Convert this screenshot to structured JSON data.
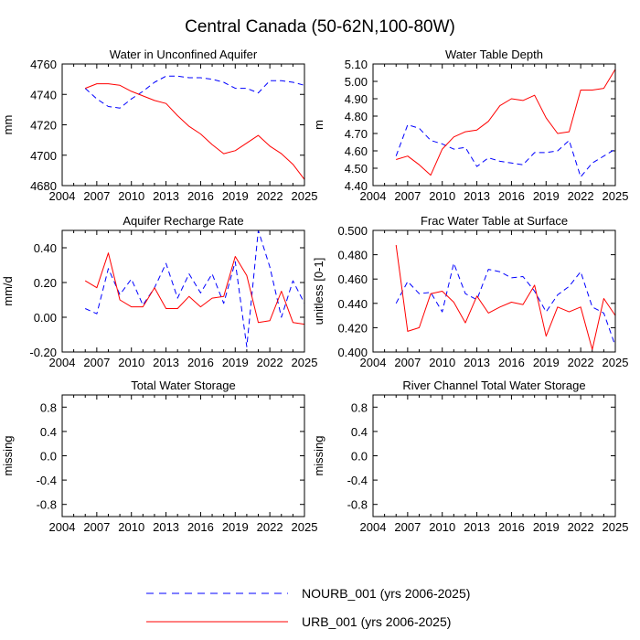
{
  "figure": {
    "title": "Central Canada (50-62N,100-80W)"
  },
  "legend": [
    {
      "label": "NOURB_001 (yrs 2006-2025)",
      "color": "#0000ff",
      "style": "dashed"
    },
    {
      "label": "URB_001 (yrs 2006-2025)",
      "color": "#ff0000",
      "style": "solid"
    }
  ],
  "chart_data": [
    {
      "type": "line",
      "title": "Water in Unconfined Aquifer",
      "ylabel": "mm",
      "xlim": [
        2004,
        2025
      ],
      "ylim": [
        4680,
        4760
      ],
      "xticks": [
        2004,
        2007,
        2010,
        2013,
        2016,
        2019,
        2022,
        2025
      ],
      "yticks": [
        4680,
        4700,
        4720,
        4740,
        4760
      ],
      "ytick_labels": [
        "4680",
        "4700",
        "4720",
        "4740",
        "4760"
      ],
      "x": [
        2006,
        2007,
        2008,
        2009,
        2010,
        2011,
        2012,
        2013,
        2014,
        2015,
        2016,
        2017,
        2018,
        2019,
        2020,
        2021,
        2022,
        2023,
        2024,
        2025
      ],
      "series": [
        {
          "name": "NOURB_001",
          "color": "#0000ff",
          "style": "dashed",
          "values": [
            4744,
            4737,
            4732,
            4731,
            4737,
            4742,
            4748,
            4752,
            4752,
            4751,
            4751,
            4750,
            4748,
            4744,
            4744,
            4741,
            4749,
            4749,
            4748,
            4746
          ]
        },
        {
          "name": "URB_001",
          "color": "#ff0000",
          "style": "solid",
          "values": [
            4744,
            4747,
            4747,
            4746,
            4742,
            4739,
            4736,
            4734,
            4726,
            4719,
            4714,
            4707,
            4701,
            4703,
            4708,
            4713,
            4706,
            4701,
            4694,
            4684
          ]
        }
      ]
    },
    {
      "type": "line",
      "title": "Water Table Depth",
      "ylabel": "m",
      "xlim": [
        2004,
        2025
      ],
      "ylim": [
        4.4,
        5.1
      ],
      "xticks": [
        2004,
        2007,
        2010,
        2013,
        2016,
        2019,
        2022,
        2025
      ],
      "yticks": [
        4.4,
        4.5,
        4.6,
        4.7,
        4.8,
        4.9,
        5.0,
        5.1
      ],
      "ytick_labels": [
        "4.40",
        "4.50",
        "4.60",
        "4.70",
        "4.80",
        "4.90",
        "5.00",
        "5.10"
      ],
      "x": [
        2006,
        2007,
        2008,
        2009,
        2010,
        2011,
        2012,
        2013,
        2014,
        2015,
        2016,
        2017,
        2018,
        2019,
        2020,
        2021,
        2022,
        2023,
        2024,
        2025
      ],
      "series": [
        {
          "name": "NOURB_001",
          "color": "#0000ff",
          "style": "dashed",
          "values": [
            4.57,
            4.75,
            4.73,
            4.66,
            4.64,
            4.61,
            4.62,
            4.51,
            4.56,
            4.54,
            4.53,
            4.52,
            4.59,
            4.59,
            4.6,
            4.66,
            4.45,
            4.53,
            4.57,
            4.61
          ]
        },
        {
          "name": "URB_001",
          "color": "#ff0000",
          "style": "solid",
          "values": [
            4.55,
            4.57,
            4.52,
            4.46,
            4.61,
            4.68,
            4.71,
            4.72,
            4.77,
            4.86,
            4.9,
            4.89,
            4.92,
            4.79,
            4.7,
            4.71,
            4.95,
            4.95,
            4.96,
            5.07
          ]
        }
      ]
    },
    {
      "type": "line",
      "title": "Aquifer Recharge Rate",
      "ylabel": "mm/d",
      "xlim": [
        2004,
        2025
      ],
      "ylim": [
        -0.2,
        0.5
      ],
      "xticks": [
        2004,
        2007,
        2010,
        2013,
        2016,
        2019,
        2022,
        2025
      ],
      "yticks": [
        -0.2,
        0.0,
        0.2,
        0.4
      ],
      "ytick_labels": [
        "-0.20",
        "0.00",
        "0.20",
        "0.40"
      ],
      "x": [
        2006,
        2007,
        2008,
        2009,
        2010,
        2011,
        2012,
        2013,
        2014,
        2015,
        2016,
        2017,
        2018,
        2019,
        2020,
        2021,
        2022,
        2023,
        2024,
        2025
      ],
      "series": [
        {
          "name": "NOURB_001",
          "color": "#0000ff",
          "style": "dashed",
          "values": [
            0.05,
            0.02,
            0.28,
            0.13,
            0.22,
            0.07,
            0.17,
            0.31,
            0.11,
            0.25,
            0.14,
            0.25,
            0.08,
            0.32,
            -0.17,
            0.5,
            0.29,
            0.0,
            0.21,
            0.08
          ]
        },
        {
          "name": "URB_001",
          "color": "#ff0000",
          "style": "solid",
          "values": [
            0.21,
            0.17,
            0.37,
            0.1,
            0.06,
            0.06,
            0.17,
            0.05,
            0.05,
            0.12,
            0.06,
            0.11,
            0.12,
            0.35,
            0.24,
            -0.03,
            -0.02,
            0.15,
            -0.03,
            -0.04
          ]
        }
      ]
    },
    {
      "type": "line",
      "title": "Frac Water Table at Surface",
      "ylabel": "unitless [0-1]",
      "xlim": [
        2004,
        2025
      ],
      "ylim": [
        0.4,
        0.5
      ],
      "xticks": [
        2004,
        2007,
        2010,
        2013,
        2016,
        2019,
        2022,
        2025
      ],
      "yticks": [
        0.4,
        0.42,
        0.44,
        0.46,
        0.48,
        0.5
      ],
      "ytick_labels": [
        "0.400",
        "0.420",
        "0.440",
        "0.460",
        "0.480",
        "0.500"
      ],
      "x": [
        2006,
        2007,
        2008,
        2009,
        2010,
        2011,
        2012,
        2013,
        2014,
        2015,
        2016,
        2017,
        2018,
        2019,
        2020,
        2021,
        2022,
        2023,
        2024,
        2025
      ],
      "series": [
        {
          "name": "NOURB_001",
          "color": "#0000ff",
          "style": "dashed",
          "values": [
            0.44,
            0.458,
            0.448,
            0.449,
            0.433,
            0.473,
            0.448,
            0.443,
            0.468,
            0.466,
            0.461,
            0.462,
            0.45,
            0.433,
            0.447,
            0.454,
            0.466,
            0.437,
            0.432,
            0.405
          ]
        },
        {
          "name": "URB_001",
          "color": "#ff0000",
          "style": "solid",
          "values": [
            0.488,
            0.417,
            0.42,
            0.448,
            0.45,
            0.441,
            0.424,
            0.446,
            0.432,
            0.437,
            0.441,
            0.439,
            0.455,
            0.413,
            0.437,
            0.433,
            0.437,
            0.402,
            0.444,
            0.43
          ]
        }
      ]
    },
    {
      "type": "line",
      "title": "Total Water Storage",
      "ylabel": "missing",
      "xlim": [
        2004,
        2025
      ],
      "ylim": [
        -1.0,
        1.0
      ],
      "xticks": [
        2004,
        2007,
        2010,
        2013,
        2016,
        2019,
        2022,
        2025
      ],
      "yticks": [
        -0.8,
        -0.4,
        0.0,
        0.4,
        0.8
      ],
      "ytick_labels": [
        "-0.8",
        "-0.4",
        "0.0",
        "0.4",
        "0.8"
      ],
      "x": [],
      "series": []
    },
    {
      "type": "line",
      "title": "River Channel Total Water Storage",
      "ylabel": "missing",
      "xlim": [
        2004,
        2025
      ],
      "ylim": [
        -1.0,
        1.0
      ],
      "xticks": [
        2004,
        2007,
        2010,
        2013,
        2016,
        2019,
        2022,
        2025
      ],
      "yticks": [
        -0.8,
        -0.4,
        0.0,
        0.4,
        0.8
      ],
      "ytick_labels": [
        "-0.8",
        "-0.4",
        "0.0",
        "0.4",
        "0.8"
      ],
      "x": [],
      "series": []
    }
  ]
}
